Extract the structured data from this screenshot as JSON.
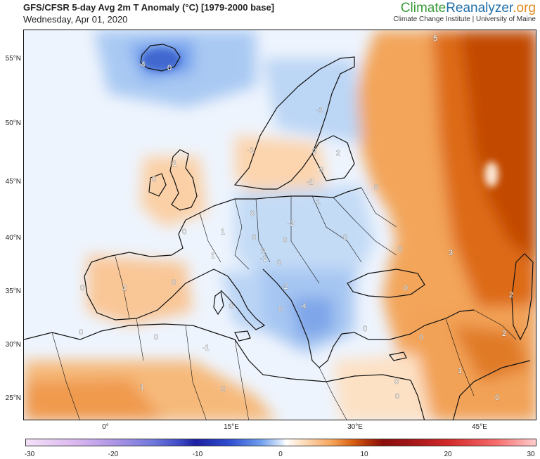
{
  "header": {
    "title": "GFS/CFSR 5-day Avg 2m T Anomaly (°C) [1979-2000 base]",
    "date": "Wednesday, Apr 01, 2020"
  },
  "brand": {
    "name_part1": "Climate",
    "name_part2": "Reanalyzer",
    "name_part3": ".org",
    "tagline": "Climate Change Institute | University of Maine"
  },
  "map": {
    "lat_labels": [
      "55°N",
      "50°N",
      "45°N",
      "40°N",
      "35°N",
      "30°N",
      "25°N"
    ],
    "lon_labels": [
      "0°",
      "15°E",
      "30°E",
      "45°E"
    ],
    "contour_labels": [
      "5",
      "-4",
      "0",
      "-2",
      "-1",
      "0",
      "-1",
      "2",
      "0",
      "0",
      "-2",
      "-1",
      "0",
      "1",
      "0",
      "0",
      "0",
      "1",
      "0",
      "0",
      "-2",
      "0",
      "-1",
      "0",
      "0",
      "2",
      "0",
      "-2",
      "0",
      "0",
      "-4",
      "0",
      "0",
      "-1",
      "0",
      "0",
      "0",
      "2",
      "0",
      "1",
      "1",
      "0",
      "0",
      "0",
      "0",
      "2",
      "3"
    ]
  },
  "colorbar": {
    "ticks": [
      "-30",
      "-20",
      "-10",
      "0",
      "10",
      "20",
      "30"
    ]
  },
  "colors": {
    "cold_deep": "#3f68cf",
    "cold_light": "#d6e7fb",
    "neutral": "#f4f8fe",
    "warm_light": "#fde1c4",
    "warm_mid": "#f2a257",
    "warm_deep": "#c24a05",
    "brand_green": "#3a9a3a",
    "brand_blue": "#1f6ea8",
    "brand_orange": "#e08a1e"
  }
}
